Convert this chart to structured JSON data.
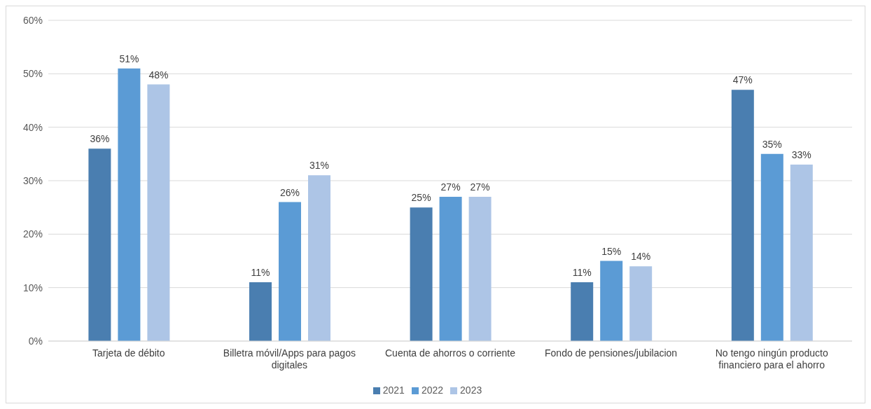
{
  "chart_data": {
    "type": "bar",
    "categories": [
      "Tarjeta de débito",
      "Billetra móvil/Apps para pagos digitales",
      "Cuenta de ahorros o corriente",
      "Fondo de pensiones/jubilacion",
      "No tengo ningún producto financiero para el ahorro"
    ],
    "series": [
      {
        "name": "2021",
        "color": "#4a7eb0",
        "values": [
          36,
          11,
          25,
          11,
          47
        ],
        "value_labels": [
          "36%",
          "11%",
          "25%",
          "11%",
          "47%"
        ]
      },
      {
        "name": "2022",
        "color": "#5b9bd5",
        "values": [
          51,
          26,
          27,
          15,
          35
        ],
        "value_labels": [
          "51%",
          "26%",
          "27%",
          "15%",
          "35%"
        ]
      },
      {
        "name": "2023",
        "color": "#adc5e6",
        "values": [
          48,
          31,
          27,
          14,
          33
        ],
        "value_labels": [
          "48%",
          "31%",
          "27%",
          "14%",
          "33%"
        ]
      }
    ],
    "ylim": [
      0,
      60
    ],
    "yticks": [
      {
        "value": 0,
        "label": "0%"
      },
      {
        "value": 10,
        "label": "10%"
      },
      {
        "value": 20,
        "label": "20%"
      },
      {
        "value": 30,
        "label": "30%"
      },
      {
        "value": 40,
        "label": "40%"
      },
      {
        "value": 50,
        "label": "50%"
      },
      {
        "value": 60,
        "label": "60%"
      }
    ],
    "grid": "y",
    "legend": "bottom"
  }
}
